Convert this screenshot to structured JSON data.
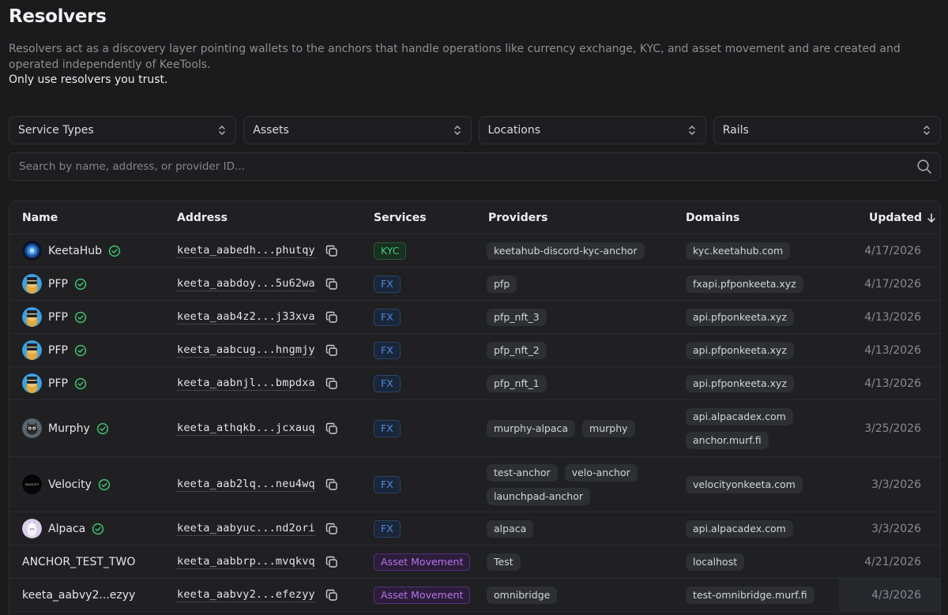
{
  "page": {
    "title": "Resolvers",
    "description": "Resolvers act as a discovery layer pointing wallets to the anchors that handle operations like currency exchange, KYC, and asset movement and are created and operated independently of KeeTools.",
    "trust_note": "Only use resolvers you trust."
  },
  "filters": [
    {
      "label": "Service Types"
    },
    {
      "label": "Assets"
    },
    {
      "label": "Locations"
    },
    {
      "label": "Rails"
    }
  ],
  "search": {
    "placeholder": "Search by name, address, or provider ID...",
    "value": ""
  },
  "table": {
    "columns": {
      "name": "Name",
      "address": "Address",
      "services": "Services",
      "providers": "Providers",
      "domains": "Domains",
      "updated": "Updated"
    },
    "sort_icon": "arrow-down-icon",
    "rows": [
      {
        "name": "KeetaHub",
        "avatar": "keetahub-logo",
        "verified": true,
        "address": "keeta_aabedh...phutqy",
        "service": "KYC",
        "service_type": "kyc",
        "providers": [
          "keetahub-discord-kyc-anchor"
        ],
        "domains": [
          "kyc.keetahub.com"
        ],
        "updated": "4/17/2026"
      },
      {
        "name": "PFP",
        "avatar": "pfp-logo",
        "verified": true,
        "address": "keeta_aabdoy...5u62wa",
        "service": "FX",
        "service_type": "fx",
        "providers": [
          "pfp"
        ],
        "domains": [
          "fxapi.pfponkeeta.xyz"
        ],
        "updated": "4/17/2026"
      },
      {
        "name": "PFP",
        "avatar": "pfp-logo",
        "verified": true,
        "address": "keeta_aab4z2...j33xva",
        "service": "FX",
        "service_type": "fx",
        "providers": [
          "pfp_nft_3"
        ],
        "domains": [
          "api.pfponkeeta.xyz"
        ],
        "updated": "4/13/2026"
      },
      {
        "name": "PFP",
        "avatar": "pfp-logo",
        "verified": true,
        "address": "keeta_aabcug...hngmjy",
        "service": "FX",
        "service_type": "fx",
        "providers": [
          "pfp_nft_2"
        ],
        "domains": [
          "api.pfponkeeta.xyz"
        ],
        "updated": "4/13/2026"
      },
      {
        "name": "PFP",
        "avatar": "pfp-logo",
        "verified": true,
        "address": "keeta_aabnjl...bmpdxa",
        "service": "FX",
        "service_type": "fx",
        "providers": [
          "pfp_nft_1"
        ],
        "domains": [
          "api.pfponkeeta.xyz"
        ],
        "updated": "4/13/2026"
      },
      {
        "name": "Murphy",
        "avatar": "murphy-logo",
        "verified": true,
        "address": "keeta_athqkb...jcxauq",
        "service": "FX",
        "service_type": "fx",
        "providers": [
          "murphy-alpaca",
          "murphy"
        ],
        "domains": [
          "api.alpacadex.com",
          "anchor.murf.fi"
        ],
        "updated": "3/25/2026"
      },
      {
        "name": "Velocity",
        "avatar": "velocity-logo",
        "avatar_text": "VELOCITY",
        "verified": true,
        "address": "keeta_aab2lq...neu4wq",
        "service": "FX",
        "service_type": "fx",
        "providers": [
          "test-anchor",
          "velo-anchor",
          "launchpad-anchor"
        ],
        "domains": [
          "velocityonkeeta.com"
        ],
        "updated": "3/3/2026"
      },
      {
        "name": "Alpaca",
        "avatar": "alpaca-logo",
        "verified": true,
        "address": "keeta_aabyuc...nd2ori",
        "service": "FX",
        "service_type": "fx",
        "providers": [
          "alpaca"
        ],
        "domains": [
          "api.alpacadex.com"
        ],
        "updated": "3/3/2026"
      },
      {
        "name": "ANCHOR_TEST_TWO",
        "avatar": "",
        "verified": false,
        "address": "keeta_aabbrp...mvqkvq",
        "service": "Asset Movement",
        "service_type": "asset",
        "providers": [
          "Test"
        ],
        "domains": [
          "localhost"
        ],
        "updated": "4/21/2026"
      },
      {
        "name": "keeta_aabvy2...ezyy",
        "avatar": "",
        "verified": false,
        "address": "keeta_aabvy2...efezyy",
        "service": "Asset Movement",
        "service_type": "asset",
        "providers": [
          "omnibridge"
        ],
        "domains": [
          "test-omnibridge.murf.fi"
        ],
        "updated": "4/3/2026",
        "highlight_updated": true
      }
    ]
  },
  "colors": {
    "background": "#1b1b1c",
    "kyc": "#4cc57c",
    "fx": "#4d8de0",
    "asset_movement": "#b773e6",
    "verified": "#3ec46d"
  }
}
